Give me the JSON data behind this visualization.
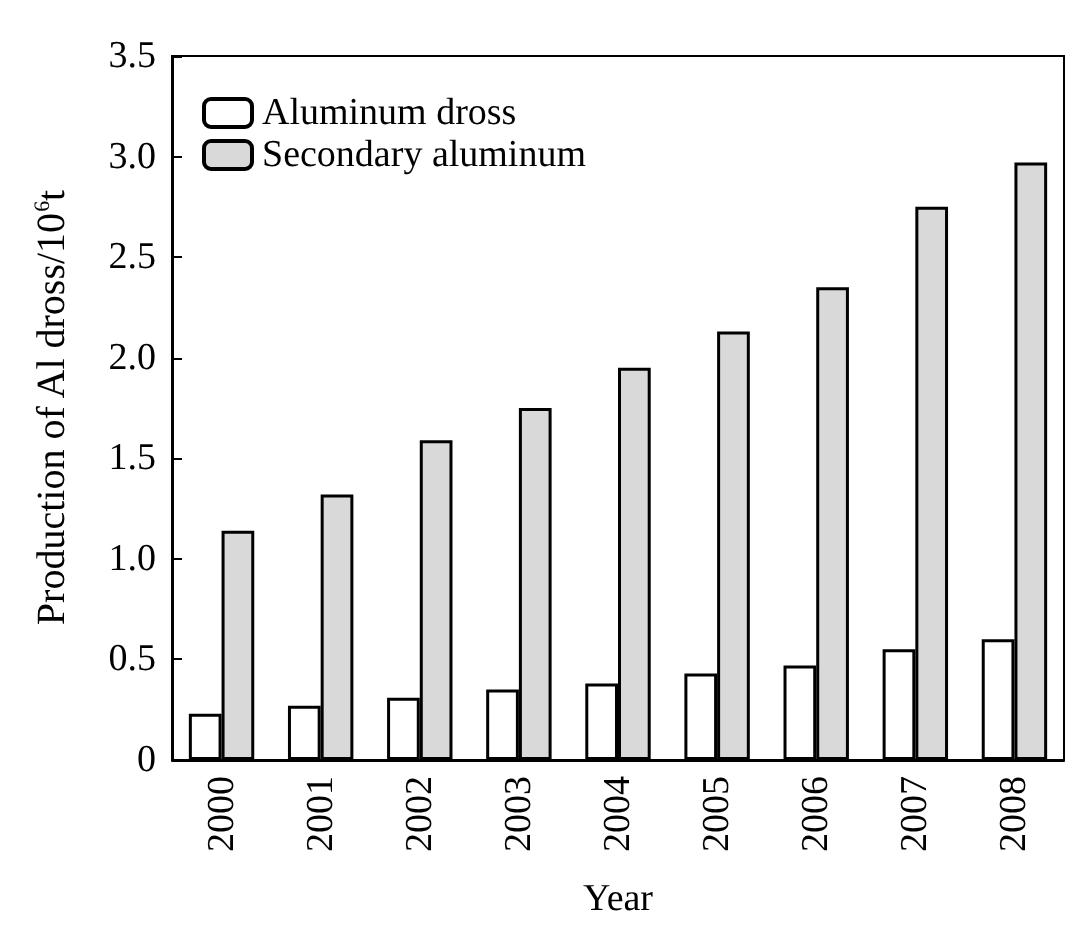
{
  "chart_data": {
    "type": "bar",
    "xlabel": "Year",
    "ylabel": "Production of Al dross/10$^{6}$t",
    "categories": [
      "2000",
      "2001",
      "2002",
      "2003",
      "2004",
      "2005",
      "2006",
      "2007",
      "2008"
    ],
    "series": [
      {
        "name": "Aluminum dross",
        "color": "#ffffff",
        "values": [
          0.23,
          0.27,
          0.31,
          0.35,
          0.38,
          0.43,
          0.47,
          0.55,
          0.6
        ]
      },
      {
        "name": "Secondary aluminum",
        "color": "#d9d9d9",
        "values": [
          1.14,
          1.32,
          1.59,
          1.75,
          1.95,
          2.13,
          2.35,
          2.75,
          2.97
        ]
      }
    ],
    "ylim": [
      0,
      3.5
    ],
    "yticks": [
      0,
      {
        "value": 0.5,
        "label": "0.5"
      },
      {
        "value": 1,
        "label": "1.0"
      },
      {
        "value": 1.5,
        "label": "1.5"
      },
      {
        "value": 2,
        "label": "2.0"
      },
      {
        "value": 2.5,
        "label": "2.5"
      },
      {
        "value": 3,
        "label": "3.0"
      },
      {
        "value": 3.5,
        "label": "3.5"
      }
    ],
    "grid": false,
    "legend": "top left"
  }
}
